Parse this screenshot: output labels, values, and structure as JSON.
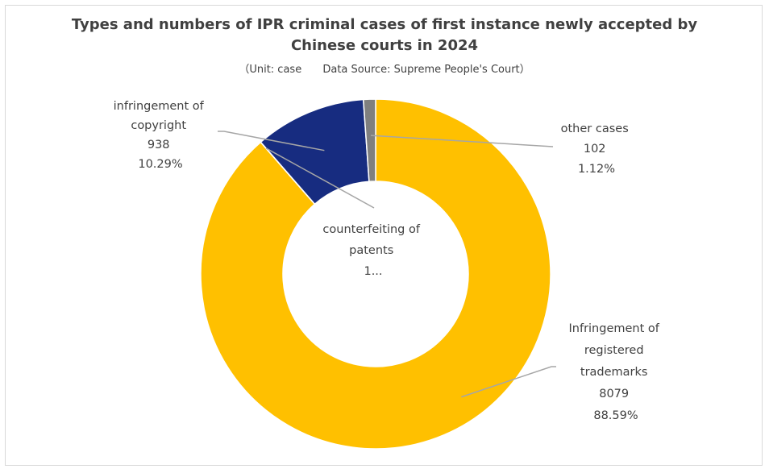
{
  "chart_data": {
    "type": "pie",
    "variant": "donut",
    "title_line1": "Types and numbers of IPR criminal cases of first instance newly accepted by",
    "title_line2": "Chinese courts in 2024",
    "subtitle_unit": "（Unit: case",
    "subtitle_source": "Data Source: Supreme People's Court）",
    "legend": "none",
    "slices": [
      {
        "name": "Infringement of registered trademarks",
        "label_lines": [
          "Infringement of",
          "registered",
          "trademarks"
        ],
        "value": 8079,
        "value_label": "8079",
        "percent_label": "88.59%",
        "color": "#FFC000"
      },
      {
        "name": "counterfeiting of patents",
        "label_lines": [
          "counterfeiting of",
          "patents",
          "1..."
        ],
        "value": 1,
        "color": "#A5A5A5"
      },
      {
        "name": "infringement of copyright",
        "label_lines": [
          "infringement of",
          "copyright"
        ],
        "value": 938,
        "value_label": "938",
        "percent_label": "10.29%",
        "color": "#172C80"
      },
      {
        "name": "other cases",
        "label_lines": [
          "other cases"
        ],
        "value": 102,
        "value_label": "102",
        "percent_label": "1.12%",
        "color": "#7F7F7F"
      }
    ],
    "leader_line_color": "#A6A6A6"
  }
}
